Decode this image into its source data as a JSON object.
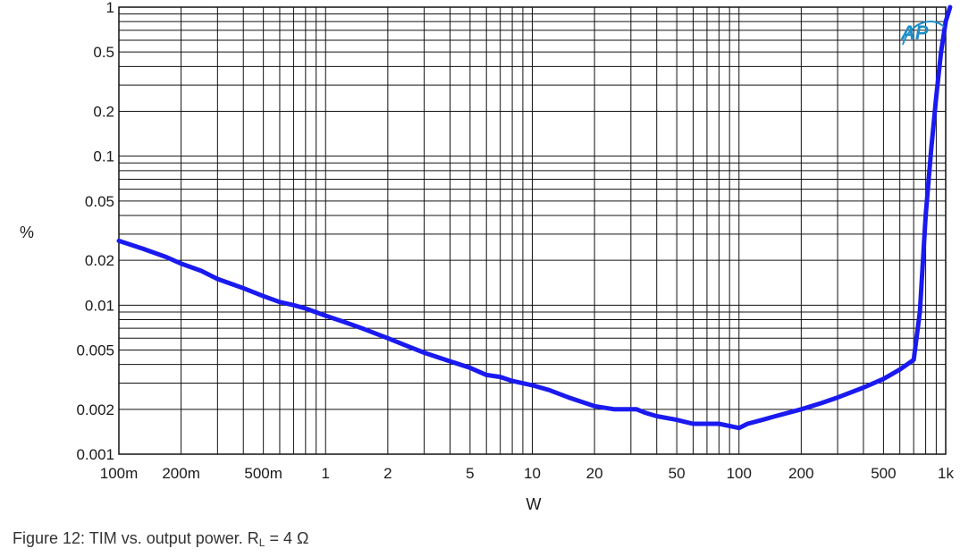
{
  "chart_data": {
    "type": "line",
    "xlabel": "W",
    "ylabel": "%",
    "x_scale": "log",
    "y_scale": "log",
    "xlim": [
      0.1,
      1000
    ],
    "ylim": [
      0.001,
      1
    ],
    "grid": true,
    "x_ticks": [
      {
        "value": 0.1,
        "label": "100m"
      },
      {
        "value": 0.2,
        "label": "200m"
      },
      {
        "value": 0.5,
        "label": "500m"
      },
      {
        "value": 1,
        "label": "1"
      },
      {
        "value": 2,
        "label": "2"
      },
      {
        "value": 5,
        "label": "5"
      },
      {
        "value": 10,
        "label": "10"
      },
      {
        "value": 20,
        "label": "20"
      },
      {
        "value": 50,
        "label": "50"
      },
      {
        "value": 100,
        "label": "100"
      },
      {
        "value": 200,
        "label": "200"
      },
      {
        "value": 500,
        "label": "500"
      },
      {
        "value": 1000,
        "label": "1k"
      }
    ],
    "y_ticks": [
      {
        "value": 1,
        "label": "1"
      },
      {
        "value": 0.5,
        "label": "0.5"
      },
      {
        "value": 0.2,
        "label": "0.2"
      },
      {
        "value": 0.1,
        "label": "0.1"
      },
      {
        "value": 0.05,
        "label": "0.05"
      },
      {
        "value": 0.02,
        "label": "0.02"
      },
      {
        "value": 0.01,
        "label": "0.01"
      },
      {
        "value": 0.005,
        "label": "0.005"
      },
      {
        "value": 0.002,
        "label": "0.002"
      },
      {
        "value": 0.001,
        "label": "0.001"
      }
    ],
    "series": [
      {
        "color": "#1a1af0",
        "x": [
          0.1,
          0.13,
          0.17,
          0.2,
          0.25,
          0.3,
          0.4,
          0.5,
          0.6,
          0.7,
          0.8,
          1.0,
          1.2,
          1.5,
          2.0,
          2.5,
          3.0,
          4.0,
          5.0,
          6.0,
          7.0,
          8.0,
          10,
          12,
          15,
          20,
          25,
          30,
          32,
          35,
          40,
          50,
          60,
          70,
          80,
          100,
          110,
          130,
          150,
          200,
          250,
          300,
          400,
          500,
          600,
          650,
          700,
          750,
          800,
          850,
          900,
          950,
          1000,
          1050
        ],
        "y": [
          0.027,
          0.024,
          0.021,
          0.019,
          0.017,
          0.015,
          0.013,
          0.0115,
          0.0105,
          0.01,
          0.0095,
          0.0085,
          0.0078,
          0.007,
          0.006,
          0.0053,
          0.0048,
          0.0042,
          0.0038,
          0.0034,
          0.0033,
          0.0031,
          0.0029,
          0.0027,
          0.0024,
          0.0021,
          0.002,
          0.002,
          0.002,
          0.0019,
          0.0018,
          0.0017,
          0.0016,
          0.0016,
          0.0016,
          0.0015,
          0.0016,
          0.0017,
          0.0018,
          0.002,
          0.0022,
          0.0024,
          0.0028,
          0.0032,
          0.0037,
          0.004,
          0.0043,
          0.009,
          0.04,
          0.11,
          0.25,
          0.5,
          0.8,
          1.0
        ]
      }
    ]
  },
  "caption": {
    "text": "Figure 12: TIM vs. output power. R",
    "sub": "L",
    "suffix": " = 4 Ω"
  },
  "logo": {
    "text": "AP",
    "color": "#1e8ec8"
  }
}
